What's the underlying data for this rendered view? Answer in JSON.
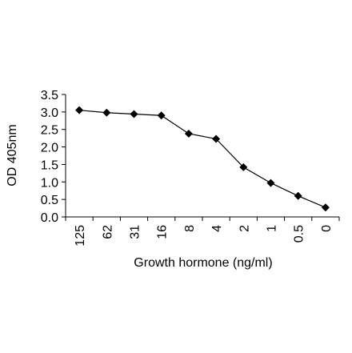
{
  "chart_data": {
    "type": "line",
    "title": "",
    "xlabel": "Growth hormone (ng/ml)",
    "ylabel": "OD 405nm",
    "categories": [
      "125",
      "62",
      "31",
      "16",
      "8",
      "4",
      "2",
      "1",
      "0.5",
      "0"
    ],
    "series": [
      {
        "values": [
          3.05,
          2.98,
          2.94,
          2.9,
          2.38,
          2.23,
          1.42,
          0.97,
          0.6,
          0.27
        ]
      }
    ],
    "ylim": [
      0,
      3.5
    ],
    "yticks": [
      "0.0",
      "0.5",
      "1.0",
      "1.5",
      "2.0",
      "2.5",
      "3.0",
      "3.5"
    ],
    "marker": "diamond",
    "grid": false,
    "legend": "none",
    "colors": {
      "line": "#000000",
      "marker": "#000000",
      "axis": "#000000"
    }
  }
}
